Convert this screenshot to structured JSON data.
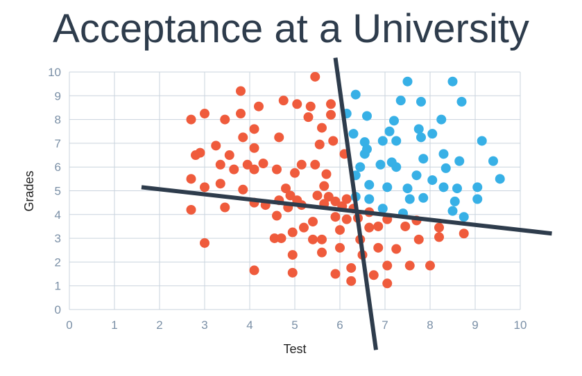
{
  "chart_data": {
    "type": "scatter",
    "title": "Acceptance at a University",
    "xlabel": "Test",
    "ylabel": "Grades",
    "xlim": [
      0,
      10
    ],
    "ylim": [
      0,
      10
    ],
    "xticks": [
      "0",
      "1",
      "2",
      "3",
      "4",
      "5",
      "6",
      "7",
      "8",
      "9",
      "10"
    ],
    "yticks": [
      "0",
      "1",
      "2",
      "3",
      "4",
      "5",
      "6",
      "7",
      "8",
      "9",
      "10"
    ],
    "grid": true,
    "colors": {
      "red": "#ef5b3c",
      "blue": "#37b0e6",
      "line": "#2e3c4c",
      "grid": "#c9d3de"
    },
    "series": [
      {
        "color": "red",
        "points": [
          [
            2.7,
            8.0
          ],
          [
            2.7,
            5.5
          ],
          [
            2.7,
            4.2
          ],
          [
            2.8,
            6.5
          ],
          [
            2.9,
            6.6
          ],
          [
            3.0,
            8.25
          ],
          [
            3.0,
            5.15
          ],
          [
            3.0,
            2.8
          ],
          [
            3.25,
            6.9
          ],
          [
            3.35,
            6.1
          ],
          [
            3.35,
            5.3
          ],
          [
            3.45,
            8.0
          ],
          [
            3.45,
            4.3
          ],
          [
            3.55,
            6.5
          ],
          [
            3.65,
            5.9
          ],
          [
            3.8,
            9.2
          ],
          [
            3.8,
            8.25
          ],
          [
            3.85,
            7.25
          ],
          [
            3.85,
            5.05
          ],
          [
            3.95,
            6.1
          ],
          [
            4.1,
            7.6
          ],
          [
            4.1,
            6.8
          ],
          [
            4.1,
            5.9
          ],
          [
            4.1,
            4.5
          ],
          [
            4.1,
            1.65
          ],
          [
            4.2,
            8.55
          ],
          [
            4.3,
            6.15
          ],
          [
            4.35,
            4.4
          ],
          [
            4.55,
            3.0
          ],
          [
            4.6,
            5.9
          ],
          [
            4.6,
            3.95
          ],
          [
            4.65,
            4.6
          ],
          [
            4.65,
            7.25
          ],
          [
            4.7,
            3.0
          ],
          [
            4.75,
            8.8
          ],
          [
            4.8,
            5.1
          ],
          [
            4.85,
            4.3
          ],
          [
            4.9,
            4.8
          ],
          [
            4.95,
            2.3
          ],
          [
            4.95,
            1.55
          ],
          [
            4.95,
            3.25
          ],
          [
            5.0,
            5.75
          ],
          [
            5.05,
            8.65
          ],
          [
            5.05,
            4.6
          ],
          [
            5.15,
            6.1
          ],
          [
            5.15,
            4.4
          ],
          [
            5.2,
            3.45
          ],
          [
            5.3,
            8.1
          ],
          [
            5.35,
            8.55
          ],
          [
            5.4,
            3.7
          ],
          [
            5.4,
            2.95
          ],
          [
            5.45,
            9.8
          ],
          [
            5.45,
            6.1
          ],
          [
            5.5,
            4.8
          ],
          [
            5.55,
            6.95
          ],
          [
            5.6,
            7.65
          ],
          [
            5.6,
            2.95
          ],
          [
            5.6,
            2.4
          ],
          [
            5.65,
            4.45
          ],
          [
            5.65,
            5.2
          ],
          [
            5.7,
            5.7
          ],
          [
            5.75,
            4.75
          ],
          [
            5.8,
            8.65
          ],
          [
            5.8,
            8.2
          ],
          [
            5.85,
            7.1
          ],
          [
            5.9,
            4.55
          ],
          [
            5.9,
            3.9
          ],
          [
            5.9,
            1.5
          ],
          [
            6.0,
            3.35
          ],
          [
            6.0,
            2.6
          ],
          [
            6.05,
            4.35
          ],
          [
            6.1,
            6.55
          ],
          [
            6.15,
            4.65
          ],
          [
            6.15,
            3.8
          ],
          [
            6.25,
            1.75
          ],
          [
            6.25,
            1.2
          ],
          [
            6.3,
            4.25
          ],
          [
            6.4,
            3.85
          ],
          [
            6.45,
            2.95
          ],
          [
            6.5,
            2.3
          ],
          [
            6.65,
            4.1
          ],
          [
            6.65,
            3.45
          ],
          [
            6.75,
            1.45
          ],
          [
            6.85,
            3.5
          ],
          [
            6.85,
            2.6
          ],
          [
            7.05,
            1.1
          ],
          [
            7.05,
            1.85
          ],
          [
            7.05,
            3.8
          ],
          [
            7.25,
            2.55
          ],
          [
            7.45,
            3.5
          ],
          [
            7.55,
            1.85
          ],
          [
            7.7,
            3.75
          ],
          [
            7.75,
            2.95
          ],
          [
            8.0,
            1.85
          ],
          [
            8.2,
            3.45
          ],
          [
            8.2,
            3.05
          ],
          [
            8.75,
            3.2
          ]
        ]
      },
      {
        "color": "blue",
        "points": [
          [
            6.15,
            8.25
          ],
          [
            6.3,
            7.4
          ],
          [
            6.35,
            9.05
          ],
          [
            6.35,
            5.65
          ],
          [
            6.35,
            4.75
          ],
          [
            6.45,
            6.0
          ],
          [
            6.55,
            7.05
          ],
          [
            6.55,
            6.55
          ],
          [
            6.6,
            6.75
          ],
          [
            6.6,
            8.15
          ],
          [
            6.65,
            5.25
          ],
          [
            6.65,
            4.65
          ],
          [
            6.9,
            6.1
          ],
          [
            6.95,
            7.1
          ],
          [
            6.95,
            4.25
          ],
          [
            7.05,
            5.15
          ],
          [
            7.1,
            7.5
          ],
          [
            7.15,
            6.2
          ],
          [
            7.2,
            7.95
          ],
          [
            7.25,
            7.1
          ],
          [
            7.25,
            6.0
          ],
          [
            7.35,
            8.8
          ],
          [
            7.4,
            4.05
          ],
          [
            7.5,
            9.6
          ],
          [
            7.5,
            5.1
          ],
          [
            7.55,
            4.65
          ],
          [
            7.7,
            5.65
          ],
          [
            7.75,
            7.6
          ],
          [
            7.8,
            8.75
          ],
          [
            7.8,
            7.25
          ],
          [
            7.85,
            6.35
          ],
          [
            7.85,
            4.7
          ],
          [
            8.05,
            7.4
          ],
          [
            8.05,
            5.45
          ],
          [
            8.25,
            8.0
          ],
          [
            8.3,
            5.15
          ],
          [
            8.3,
            6.55
          ],
          [
            8.35,
            5.95
          ],
          [
            8.5,
            9.6
          ],
          [
            8.5,
            4.15
          ],
          [
            8.55,
            4.55
          ],
          [
            8.6,
            5.1
          ],
          [
            8.65,
            6.25
          ],
          [
            8.7,
            8.75
          ],
          [
            8.75,
            3.9
          ],
          [
            9.05,
            5.15
          ],
          [
            9.05,
            4.65
          ],
          [
            9.15,
            7.1
          ],
          [
            9.4,
            6.25
          ],
          [
            9.55,
            5.5
          ]
        ]
      }
    ],
    "lines": [
      {
        "from": [
          1.6,
          5.15
        ],
        "to": [
          10.7,
          3.2
        ]
      },
      {
        "from": [
          5.9,
          10.6
        ],
        "to": [
          6.8,
          -1.7
        ]
      }
    ]
  }
}
